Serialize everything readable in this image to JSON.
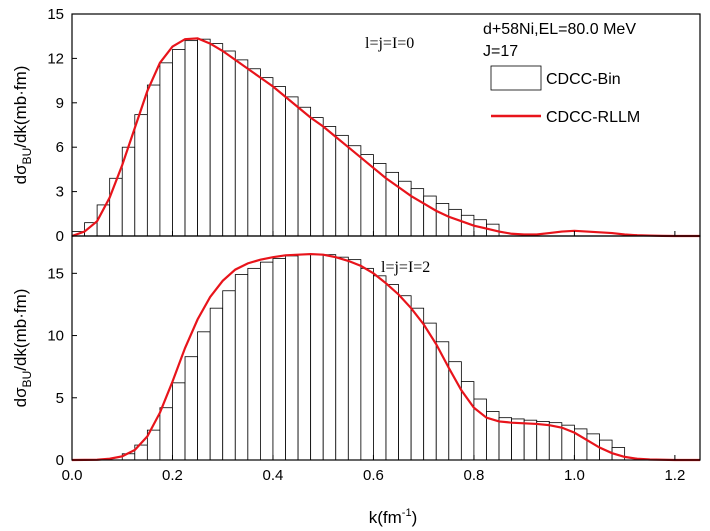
{
  "chart_data": {
    "type": "bar",
    "xlabel": "k(fm",
    "xlabel_sup": "-1",
    "xlabel_close": ")",
    "xlim": [
      0.0,
      1.25
    ],
    "x_ticks": [
      "0.0",
      "0.2",
      "0.4",
      "0.6",
      "0.8",
      "1.0",
      "1.2"
    ],
    "bin_width": 0.025,
    "legend": {
      "line1": "d+58Ni,EL=80.0 MeV",
      "line2": "J=17",
      "bin_label": "CDCC-Bin",
      "curve_label": "CDCC-RLLM",
      "curve_color": "#e8141b"
    },
    "panels": [
      {
        "ylabel_pre": "dσ",
        "ylabel_sub": "BU",
        "ylabel_post": "/dk(mb·fm)",
        "ylim": [
          0,
          15
        ],
        "y_ticks": [
          "0",
          "3",
          "6",
          "9",
          "12",
          "15"
        ],
        "annotation": "l=j=I=0",
        "bin_centers": [
          0.0125,
          0.0375,
          0.0625,
          0.0875,
          0.1125,
          0.1375,
          0.1625,
          0.1875,
          0.2125,
          0.2375,
          0.2625,
          0.2875,
          0.3125,
          0.3375,
          0.3625,
          0.3875,
          0.4125,
          0.4375,
          0.4625,
          0.4875,
          0.5125,
          0.5375,
          0.5625,
          0.5875,
          0.6125,
          0.6375,
          0.6625,
          0.6875,
          0.7125,
          0.7375,
          0.7625,
          0.7875,
          0.8125,
          0.8375
        ],
        "bin_values": [
          0.3,
          0.9,
          2.1,
          3.9,
          6.0,
          8.2,
          10.2,
          11.7,
          12.6,
          13.2,
          13.3,
          13.0,
          12.5,
          11.9,
          11.3,
          10.7,
          10.1,
          9.4,
          8.7,
          8.0,
          7.4,
          6.8,
          6.1,
          5.5,
          4.9,
          4.3,
          3.7,
          3.2,
          2.7,
          2.2,
          1.8,
          1.4,
          1.1,
          0.8
        ],
        "curve_x": [
          0.0,
          0.025,
          0.05,
          0.075,
          0.1,
          0.125,
          0.15,
          0.175,
          0.2,
          0.225,
          0.25,
          0.275,
          0.3,
          0.325,
          0.35,
          0.375,
          0.4,
          0.425,
          0.45,
          0.475,
          0.5,
          0.525,
          0.55,
          0.575,
          0.6,
          0.625,
          0.65,
          0.675,
          0.7,
          0.725,
          0.75,
          0.775,
          0.8,
          0.825,
          0.85,
          0.875,
          0.9,
          0.925,
          0.95,
          0.975,
          1.0,
          1.025,
          1.05,
          1.075,
          1.1,
          1.125,
          1.15,
          1.175,
          1.2,
          1.25
        ],
        "curve_y": [
          0.0,
          0.3,
          1.0,
          2.6,
          4.8,
          7.3,
          9.8,
          11.7,
          12.8,
          13.3,
          13.35,
          13.0,
          12.5,
          11.9,
          11.3,
          10.7,
          10.1,
          9.4,
          8.7,
          8.0,
          7.4,
          6.7,
          6.0,
          5.3,
          4.6,
          3.9,
          3.3,
          2.7,
          2.2,
          1.7,
          1.3,
          1.0,
          0.7,
          0.5,
          0.3,
          0.15,
          0.1,
          0.1,
          0.2,
          0.3,
          0.35,
          0.3,
          0.25,
          0.2,
          0.1,
          0.05,
          0.03,
          0.01,
          0.0,
          0.0
        ]
      },
      {
        "ylabel_pre": "dσ",
        "ylabel_sub": "BU",
        "ylabel_post": "/dk(mb·fm)",
        "ylim": [
          0,
          18
        ],
        "y_ticks": [
          "0",
          "5",
          "10",
          "15"
        ],
        "y_tick_values": [
          0,
          5,
          10,
          15
        ],
        "annotation": "l=j=I=2",
        "bin_centers": [
          0.1125,
          0.1375,
          0.1625,
          0.1875,
          0.2125,
          0.2375,
          0.2625,
          0.2875,
          0.3125,
          0.3375,
          0.3625,
          0.3875,
          0.4125,
          0.4375,
          0.4625,
          0.4875,
          0.5125,
          0.5375,
          0.5625,
          0.5875,
          0.6125,
          0.6375,
          0.6625,
          0.6875,
          0.7125,
          0.7375,
          0.7625,
          0.7875,
          0.8125,
          0.8375,
          0.8625,
          0.8875,
          0.9125,
          0.9375,
          0.9625,
          0.9875,
          1.0125,
          1.0375,
          1.0625,
          1.0875
        ],
        "bin_values": [
          0.5,
          1.2,
          2.4,
          4.2,
          6.2,
          8.3,
          10.3,
          12.2,
          13.6,
          14.9,
          15.4,
          15.9,
          16.2,
          16.4,
          16.5,
          16.5,
          16.5,
          16.3,
          16.1,
          15.4,
          14.8,
          14.1,
          13.2,
          12.2,
          11.0,
          9.5,
          7.9,
          6.3,
          4.9,
          3.9,
          3.4,
          3.3,
          3.2,
          3.1,
          3.0,
          2.8,
          2.5,
          2.1,
          1.6,
          1.0
        ],
        "curve_x": [
          0.0,
          0.05,
          0.075,
          0.1,
          0.125,
          0.15,
          0.175,
          0.2,
          0.225,
          0.25,
          0.275,
          0.3,
          0.325,
          0.35,
          0.375,
          0.4,
          0.425,
          0.45,
          0.475,
          0.5,
          0.525,
          0.55,
          0.575,
          0.6,
          0.625,
          0.65,
          0.675,
          0.7,
          0.725,
          0.75,
          0.775,
          0.8,
          0.825,
          0.85,
          0.875,
          0.9,
          0.925,
          0.95,
          0.975,
          1.0,
          1.025,
          1.05,
          1.075,
          1.1,
          1.125,
          1.15,
          1.2,
          1.25
        ],
        "curve_y": [
          0.0,
          0.02,
          0.1,
          0.3,
          0.8,
          1.9,
          3.8,
          6.3,
          9.0,
          11.3,
          13.1,
          14.4,
          15.3,
          15.8,
          16.1,
          16.3,
          16.45,
          16.5,
          16.55,
          16.5,
          16.3,
          16.0,
          15.6,
          15.0,
          14.2,
          13.3,
          12.2,
          10.9,
          9.3,
          7.4,
          5.6,
          4.2,
          3.4,
          3.1,
          3.0,
          2.95,
          2.9,
          2.8,
          2.6,
          2.2,
          1.6,
          1.0,
          0.55,
          0.25,
          0.1,
          0.04,
          0.0,
          0.0
        ]
      }
    ]
  }
}
